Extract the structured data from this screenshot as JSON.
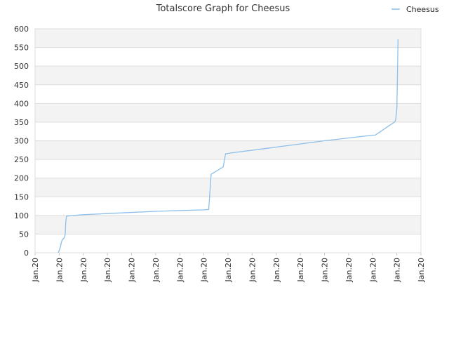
{
  "chart_data": {
    "type": "line",
    "title": "Totalscore Graph for Cheesus",
    "xlabel": "",
    "ylabel": "",
    "ylim": [
      0,
      600
    ],
    "yticks": [
      0,
      50,
      100,
      150,
      200,
      250,
      300,
      350,
      400,
      450,
      500,
      550,
      600
    ],
    "xticks": [
      "Jan.20",
      "Jan.20",
      "Jan.20",
      "Jan.20",
      "Jan.20",
      "Jan.20",
      "Jan.20",
      "Jan.20",
      "Jan.20",
      "Jan.20",
      "Jan.20",
      "Jan.20",
      "Jan.20",
      "Jan.20",
      "Jan.20",
      "Jan.20",
      "Jan.20"
    ],
    "grid": true,
    "legend_position": "top-right",
    "colors": {
      "series": "#8cbfea",
      "band": "#f3f3f3",
      "grid": "#dddddd"
    },
    "series": [
      {
        "name": "Cheesus",
        "x": [
          0.96,
          1.01,
          1.06,
          1.09,
          1.13,
          1.21,
          1.25,
          1.27,
          1.3,
          1.33,
          1.4,
          1.65,
          2.0,
          3.0,
          4.0,
          5.0,
          6.0,
          7.0,
          7.2,
          7.3,
          7.8,
          7.9,
          8.2,
          10.0,
          12.0,
          14.0,
          14.1,
          14.9,
          14.95,
          15.0,
          15.02,
          15.05
        ],
        "y": [
          0,
          8,
          18,
          28,
          35,
          40,
          50,
          80,
          98,
          98,
          99,
          100,
          102,
          105,
          108,
          111,
          113,
          115,
          116,
          210,
          230,
          265,
          268,
          283,
          300,
          315,
          315,
          350,
          355,
          385,
          450,
          572
        ]
      }
    ]
  }
}
